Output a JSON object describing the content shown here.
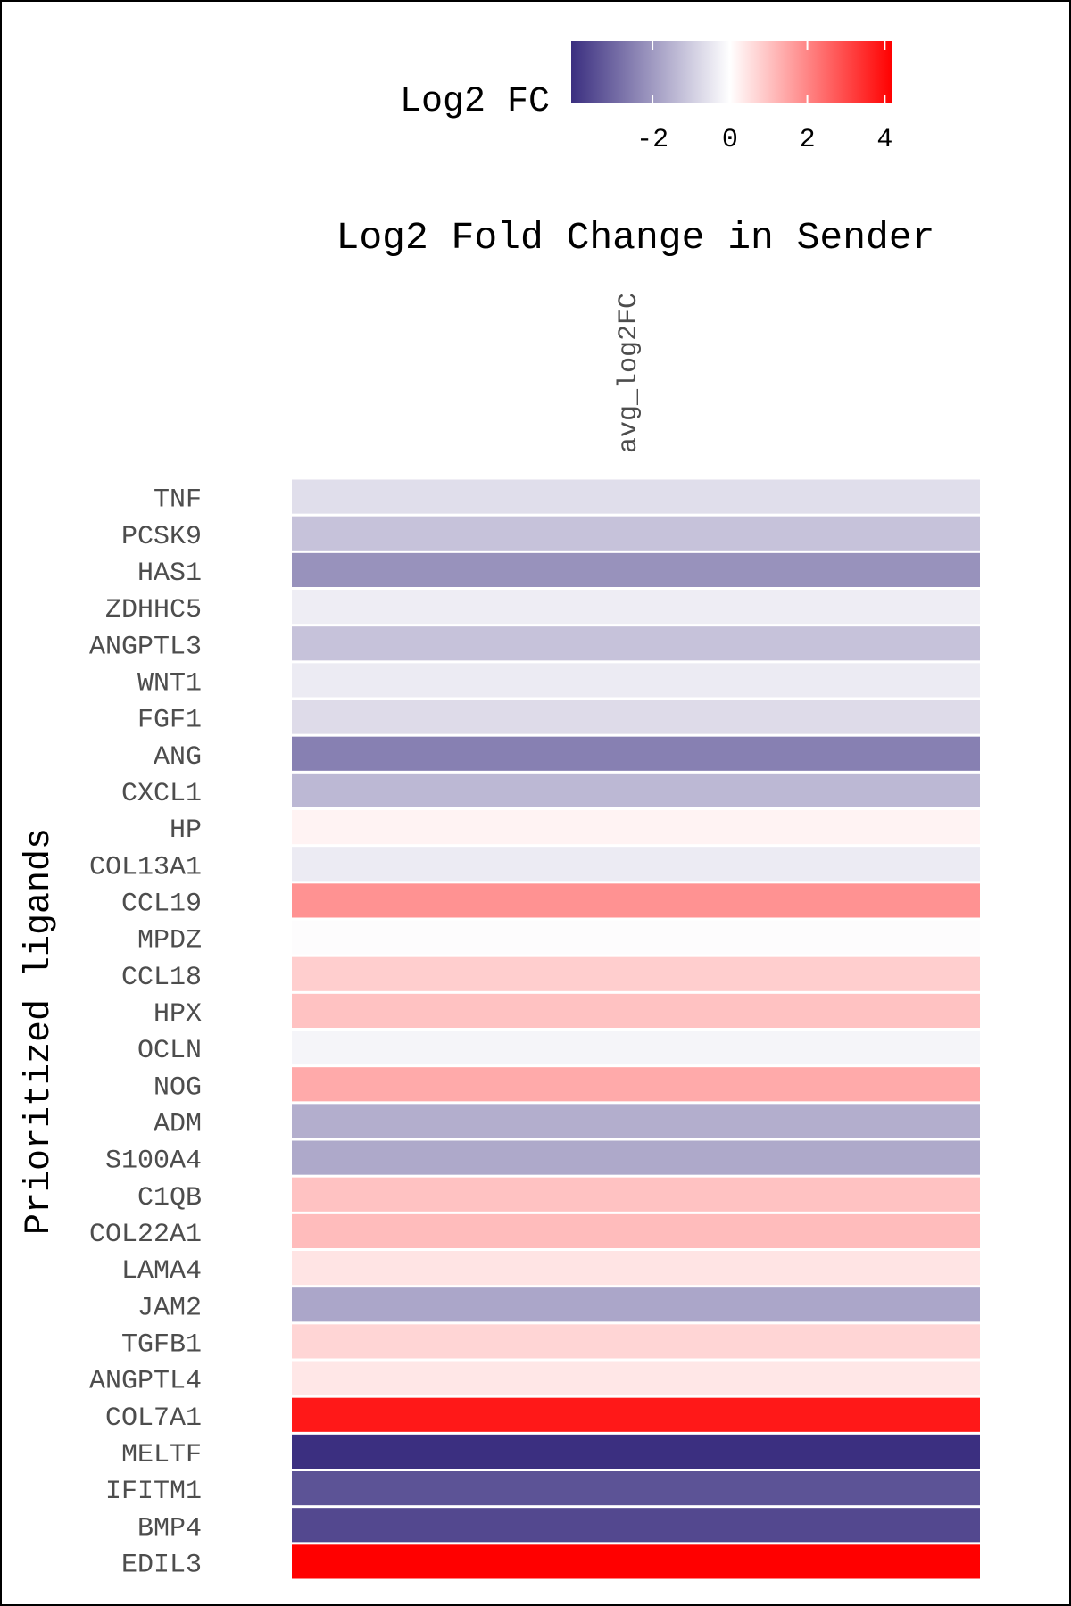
{
  "chart_data": {
    "type": "heatmap",
    "title": "Log2 Fold Change in Sender",
    "xlabel": "",
    "ylabel": "Prioritized ligands",
    "columns": [
      "avg_log2FC"
    ],
    "rows": [
      "TNF",
      "PCSK9",
      "HAS1",
      "ZDHHC5",
      "ANGPTL3",
      "WNT1",
      "FGF1",
      "ANG",
      "CXCL1",
      "HP",
      "COL13A1",
      "CCL19",
      "MPDZ",
      "CCL18",
      "HPX",
      "OCLN",
      "NOG",
      "ADM",
      "S100A4",
      "C1QB",
      "COL22A1",
      "LAMA4",
      "JAM2",
      "TGFB1",
      "ANGPTL4",
      "COL7A1",
      "MELTF",
      "IFITM1",
      "BMP4",
      "EDIL3"
    ],
    "values": [
      -0.65,
      -1.2,
      -2.15,
      -0.35,
      -1.2,
      -0.4,
      -0.7,
      -2.5,
      -1.4,
      0.2,
      -0.4,
      1.8,
      -0.05,
      0.8,
      1.0,
      -0.2,
      1.4,
      -1.6,
      -1.7,
      1.0,
      1.1,
      0.45,
      -1.75,
      0.7,
      0.4,
      3.8,
      -4.1,
      -3.4,
      -3.6,
      4.2
    ],
    "colorbar": {
      "title": "Log2 FC",
      "min": -4.1,
      "max": 4.2,
      "ticks": [
        -2,
        0,
        2,
        4
      ],
      "low_color": "#3b2f80",
      "mid_color": "#ffffff",
      "high_color": "#ff0000"
    },
    "legend_position": "top",
    "grid": false
  }
}
